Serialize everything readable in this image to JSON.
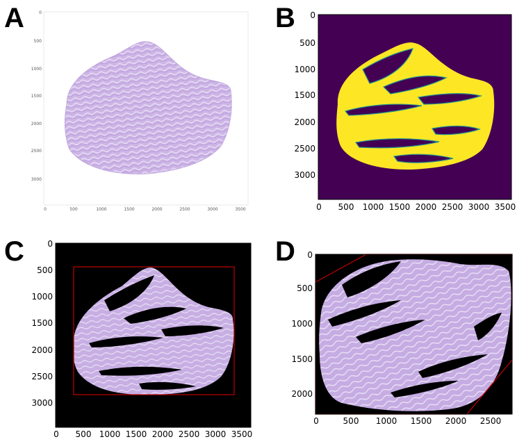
{
  "panels": [
    {
      "letter": "A",
      "y_ticks": [
        "0",
        "500",
        "1000",
        "1500",
        "2000",
        "2500",
        "3000"
      ],
      "x_ticks": [
        "0",
        "500",
        "1000",
        "1500",
        "2000",
        "2500",
        "3000",
        "3500"
      ]
    },
    {
      "letter": "B",
      "y_ticks": [
        "0",
        "500",
        "1000",
        "1500",
        "2000",
        "2500",
        "3000"
      ],
      "x_ticks": [
        "0",
        "500",
        "1000",
        "1500",
        "2000",
        "2500",
        "3000",
        "3500"
      ]
    },
    {
      "letter": "C",
      "y_ticks": [
        "0",
        "500",
        "1000",
        "1500",
        "2000",
        "2500",
        "3000"
      ],
      "x_ticks": [
        "0",
        "500",
        "1000",
        "1500",
        "2000",
        "2500",
        "3000",
        "3500"
      ]
    },
    {
      "letter": "D",
      "y_ticks": [
        "0",
        "500",
        "1000",
        "1500",
        "2000"
      ],
      "x_ticks": [
        "0",
        "500",
        "1000",
        "1500",
        "2000",
        "2500"
      ]
    }
  ],
  "colors": {
    "tissue_pink": "#c9b0e2",
    "tissue_white_bg": "#ffffff",
    "mask_background": "#440154",
    "mask_foreground": "#fde725",
    "mask_edge": "#21918c",
    "black_bg": "#000000",
    "box_red": "#c00000"
  }
}
